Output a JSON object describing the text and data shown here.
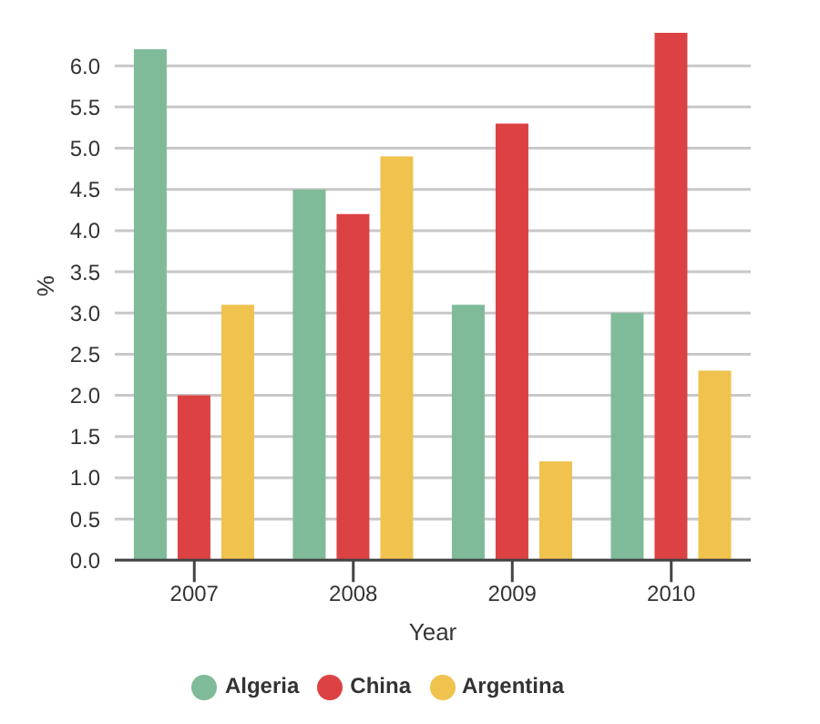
{
  "chart_data": {
    "type": "bar",
    "xlabel": "Year",
    "ylabel": "%",
    "categories": [
      "2007",
      "2008",
      "2009",
      "2010"
    ],
    "series": [
      {
        "name": "Algeria",
        "color": "#7fbb98",
        "values": [
          6.2,
          4.5,
          3.1,
          3.0
        ]
      },
      {
        "name": "China",
        "color": "#dc4244",
        "values": [
          2.0,
          4.2,
          5.3,
          6.4
        ]
      },
      {
        "name": "Argentina",
        "color": "#f0c24e",
        "values": [
          3.1,
          4.9,
          1.2,
          2.3
        ]
      }
    ],
    "ylim": [
      0,
      6.4
    ],
    "yticks": [
      {
        "value": 0,
        "label": "0.0"
      },
      {
        "value": 0.5,
        "label": "0.5"
      },
      {
        "value": 1,
        "label": "1.0"
      },
      {
        "value": 1.5,
        "label": "1.5"
      },
      {
        "value": 2,
        "label": "2.0"
      },
      {
        "value": 2.5,
        "label": "2.5"
      },
      {
        "value": 3,
        "label": "3.0"
      },
      {
        "value": 3.5,
        "label": "3.5"
      },
      {
        "value": 4,
        "label": "4.0"
      },
      {
        "value": 4.5,
        "label": "4.5"
      },
      {
        "value": 5,
        "label": "5.0"
      },
      {
        "value": 5.5,
        "label": "5.5"
      },
      {
        "value": 6,
        "label": "6.0"
      }
    ],
    "grid": "y",
    "legend": "bottom"
  }
}
